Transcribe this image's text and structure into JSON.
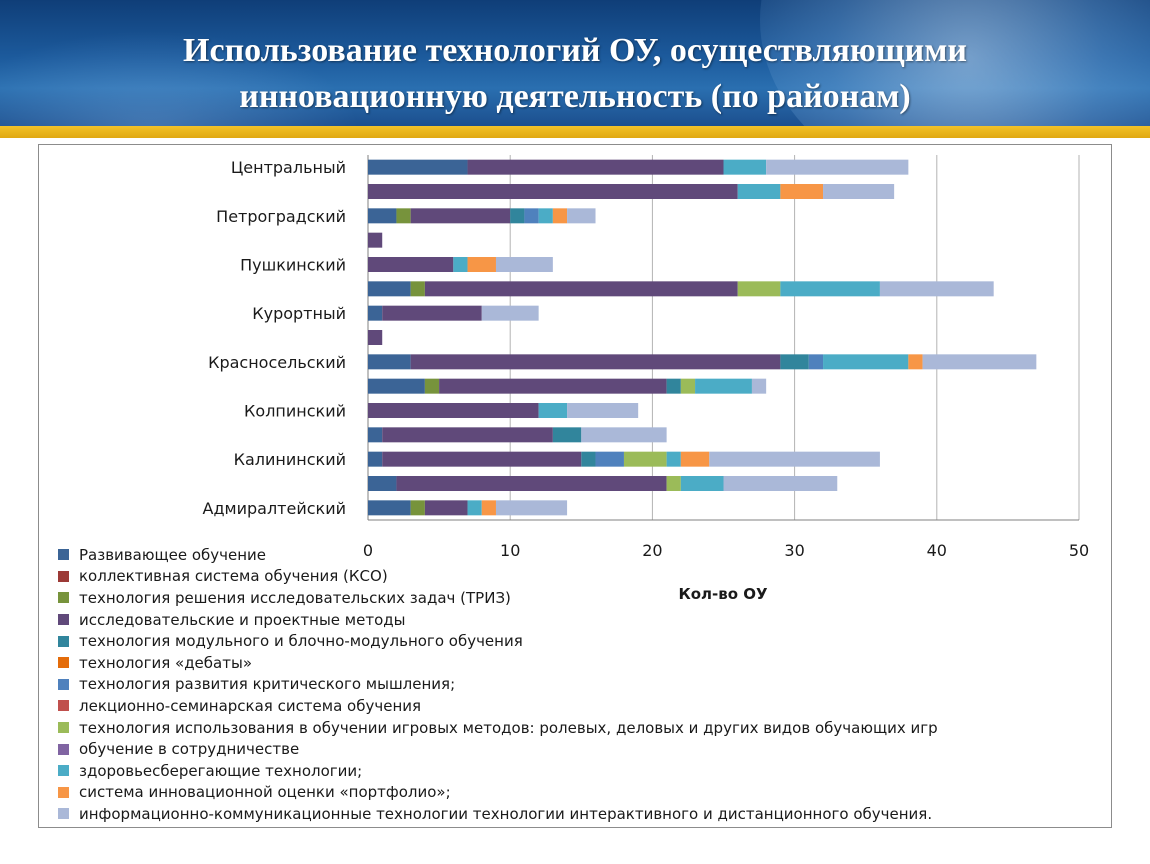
{
  "page": {
    "title_line1": "Использование технологий ОУ, осуществляющими",
    "title_line2": "инновационную деятельность (по районам)"
  },
  "chart_data": {
    "type": "bar",
    "orientation": "horizontal",
    "stacked": true,
    "xlabel": "Кол-во ОУ",
    "xlim": [
      0,
      50
    ],
    "xticks": [
      0,
      10,
      20,
      30,
      40,
      50
    ],
    "grid": "vertical",
    "legend_position": "bottom-left",
    "categories": [
      "Центральный",
      "",
      "Петроградский",
      "",
      "Пушкинский",
      "",
      "Курортный",
      "",
      "Красносельский",
      "",
      "Колпинский",
      "",
      "Калининский",
      "",
      "Адмиралтейский"
    ],
    "series": [
      {
        "name": "Развивающее обучение",
        "color": "#3b6496",
        "values": [
          7,
          0,
          2,
          0,
          0,
          3,
          1,
          0,
          3,
          4,
          0,
          1,
          1,
          2,
          3
        ]
      },
      {
        "name": "коллективная система обучения (КСО)",
        "color": "#9c3a36",
        "values": [
          0,
          0,
          0,
          0,
          0,
          0,
          0,
          0,
          0,
          0,
          0,
          0,
          0,
          0,
          0
        ]
      },
      {
        "name": "технология решения исследовательских задач (ТРИЗ)",
        "color": "#77933c",
        "values": [
          0,
          0,
          1,
          0,
          0,
          1,
          0,
          0,
          0,
          1,
          0,
          0,
          0,
          0,
          1
        ]
      },
      {
        "name": "исследовательские и проектные методы",
        "color": "#60497a",
        "values": [
          18,
          26,
          7,
          1,
          6,
          22,
          7,
          1,
          26,
          16,
          12,
          12,
          14,
          19,
          3
        ]
      },
      {
        "name": "технология модульного и блочно-модульного обучения",
        "color": "#31859c",
        "values": [
          0,
          0,
          1,
          0,
          0,
          0,
          0,
          0,
          2,
          1,
          0,
          2,
          1,
          0,
          0
        ]
      },
      {
        "name": "технология «дебаты»",
        "color": "#e46c0a",
        "values": [
          0,
          0,
          0,
          0,
          0,
          0,
          0,
          0,
          0,
          0,
          0,
          0,
          0,
          0,
          0
        ]
      },
      {
        "name": "технология развития критического мышления;",
        "color": "#4f81bd",
        "values": [
          0,
          0,
          1,
          0,
          0,
          0,
          0,
          0,
          1,
          0,
          0,
          0,
          2,
          0,
          0
        ]
      },
      {
        "name": "лекционно-семинарская система обучения",
        "color": "#c0504d",
        "values": [
          0,
          0,
          0,
          0,
          0,
          0,
          0,
          0,
          0,
          0,
          0,
          0,
          0,
          0,
          0
        ]
      },
      {
        "name": "технология использования в обучении игровых методов: ролевых, деловых и других видов обучающих игр",
        "color": "#9bbb59",
        "values": [
          0,
          0,
          0,
          0,
          0,
          3,
          0,
          0,
          0,
          1,
          0,
          0,
          3,
          1,
          0
        ]
      },
      {
        "name": "обучение в сотрудничестве",
        "color": "#8064a2",
        "values": [
          0,
          0,
          0,
          0,
          0,
          0,
          0,
          0,
          0,
          0,
          0,
          0,
          0,
          0,
          0
        ]
      },
      {
        "name": "здоровьесберегающие технологии;",
        "color": "#4bacc6",
        "values": [
          3,
          3,
          1,
          0,
          1,
          7,
          0,
          0,
          6,
          4,
          2,
          0,
          1,
          3,
          1
        ]
      },
      {
        "name": "система инновационной оценки «портфолио»;",
        "color": "#f79646",
        "values": [
          0,
          3,
          1,
          0,
          2,
          0,
          0,
          0,
          1,
          0,
          0,
          0,
          2,
          0,
          1
        ]
      },
      {
        "name": "информационно-коммуникационные технологии технологии интерактивного и дистанционного обучения.",
        "color": "#aab8d8",
        "values": [
          10,
          5,
          2,
          0,
          4,
          8,
          4,
          0,
          8,
          1,
          5,
          6,
          12,
          8,
          5
        ]
      }
    ]
  }
}
